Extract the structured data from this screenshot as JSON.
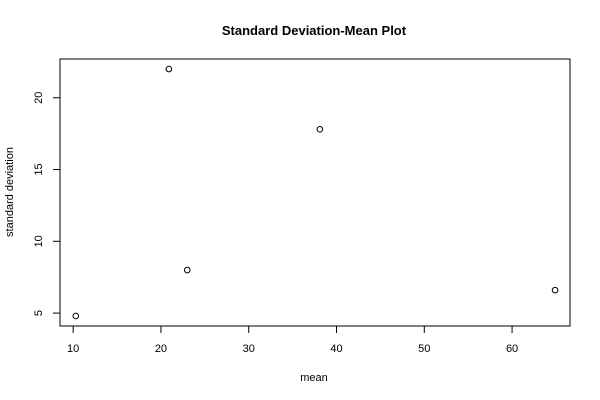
{
  "chart_data": {
    "type": "scatter",
    "title": "Standard Deviation-Mean Plot",
    "xlabel": "mean",
    "ylabel": "standard deviation",
    "xlim": [
      8.5,
      66.6
    ],
    "ylim": [
      4.1,
      22.7
    ],
    "x_ticks": [
      10,
      20,
      30,
      40,
      50,
      60
    ],
    "y_ticks": [
      5,
      10,
      15,
      20
    ],
    "grid": false,
    "points": [
      {
        "x": 10.3,
        "y": 4.8
      },
      {
        "x": 20.9,
        "y": 22.0
      },
      {
        "x": 23.0,
        "y": 8.0
      },
      {
        "x": 38.1,
        "y": 17.8
      },
      {
        "x": 64.9,
        "y": 6.6
      }
    ]
  }
}
